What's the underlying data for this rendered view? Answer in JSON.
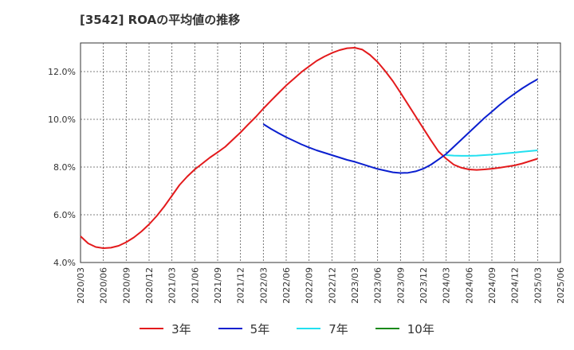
{
  "title": "[3542]  ROAの平均値の推移",
  "chart_data": {
    "type": "line",
    "title": "[3542]  ROAの平均値の推移",
    "xlabel": "",
    "ylabel": "",
    "x_ticks": [
      "2020/03",
      "2020/06",
      "2020/09",
      "2020/12",
      "2021/03",
      "2021/06",
      "2021/09",
      "2021/12",
      "2022/03",
      "2022/06",
      "2022/09",
      "2022/12",
      "2023/03",
      "2023/06",
      "2023/09",
      "2023/12",
      "2024/03",
      "2024/06",
      "2024/09",
      "2024/12",
      "2025/03",
      "2025/06"
    ],
    "y_ticks": [
      "4.0%",
      "6.0%",
      "8.0%",
      "10.0%",
      "12.0%"
    ],
    "ylim": [
      4.0,
      13.2
    ],
    "grid": true,
    "legend_position": "bottom",
    "series": [
      {
        "name": "3年",
        "color": "#e31a1c",
        "x": [
          "2020/03",
          "2020/04",
          "2020/05",
          "2020/06",
          "2020/07",
          "2020/08",
          "2020/09",
          "2020/10",
          "2020/11",
          "2020/12",
          "2021/01",
          "2021/02",
          "2021/03",
          "2021/04",
          "2021/05",
          "2021/06",
          "2021/07",
          "2021/08",
          "2021/09",
          "2021/10",
          "2021/11",
          "2021/12",
          "2022/01",
          "2022/02",
          "2022/03",
          "2022/04",
          "2022/05",
          "2022/06",
          "2022/07",
          "2022/08",
          "2022/09",
          "2022/10",
          "2022/11",
          "2022/12",
          "2023/01",
          "2023/02",
          "2023/03",
          "2023/04",
          "2023/05",
          "2023/06",
          "2023/07",
          "2023/08",
          "2023/09",
          "2023/10",
          "2023/11",
          "2023/12",
          "2024/01",
          "2024/02",
          "2024/03",
          "2024/04",
          "2024/05",
          "2024/06",
          "2024/07",
          "2024/08",
          "2024/09",
          "2024/10",
          "2024/11",
          "2024/12",
          "2025/01",
          "2025/02",
          "2025/03"
        ],
        "values": [
          5.1,
          4.8,
          4.65,
          4.6,
          4.62,
          4.7,
          4.85,
          5.05,
          5.3,
          5.6,
          5.95,
          6.35,
          6.8,
          7.25,
          7.6,
          7.9,
          8.15,
          8.4,
          8.62,
          8.85,
          9.15,
          9.45,
          9.78,
          10.1,
          10.45,
          10.78,
          11.1,
          11.42,
          11.7,
          11.98,
          12.22,
          12.45,
          12.63,
          12.78,
          12.9,
          12.98,
          13.0,
          12.92,
          12.7,
          12.4,
          12.02,
          11.6,
          11.12,
          10.62,
          10.12,
          9.62,
          9.12,
          8.65,
          8.35,
          8.1,
          7.97,
          7.9,
          7.88,
          7.9,
          7.93,
          7.97,
          8.02,
          8.07,
          8.15,
          8.25,
          8.35
        ]
      },
      {
        "name": "5年",
        "color": "#0a1fcf",
        "x": [
          "2022/03",
          "2022/04",
          "2022/05",
          "2022/06",
          "2022/07",
          "2022/08",
          "2022/09",
          "2022/10",
          "2022/11",
          "2022/12",
          "2023/01",
          "2023/02",
          "2023/03",
          "2023/04",
          "2023/05",
          "2023/06",
          "2023/07",
          "2023/08",
          "2023/09",
          "2023/10",
          "2023/11",
          "2023/12",
          "2024/01",
          "2024/02",
          "2024/03",
          "2024/04",
          "2024/05",
          "2024/06",
          "2024/07",
          "2024/08",
          "2024/09",
          "2024/10",
          "2024/11",
          "2024/12",
          "2025/01",
          "2025/02",
          "2025/03"
        ],
        "values": [
          9.8,
          9.6,
          9.42,
          9.25,
          9.1,
          8.95,
          8.82,
          8.7,
          8.6,
          8.5,
          8.4,
          8.3,
          8.22,
          8.12,
          8.02,
          7.92,
          7.85,
          7.78,
          7.75,
          7.76,
          7.82,
          7.93,
          8.1,
          8.32,
          8.55,
          8.85,
          9.15,
          9.45,
          9.75,
          10.05,
          10.32,
          10.6,
          10.85,
          11.08,
          11.3,
          11.5,
          11.68
        ]
      },
      {
        "name": "7年",
        "color": "#22e0f0",
        "x": [
          "2024/03",
          "2024/04",
          "2024/05",
          "2024/06",
          "2024/07",
          "2024/08",
          "2024/09",
          "2024/10",
          "2024/11",
          "2024/12",
          "2025/01",
          "2025/02",
          "2025/03"
        ],
        "values": [
          8.5,
          8.48,
          8.47,
          8.47,
          8.48,
          8.5,
          8.52,
          8.55,
          8.58,
          8.61,
          8.64,
          8.67,
          8.7
        ]
      },
      {
        "name": "10年",
        "color": "#1a8a1a",
        "x": [],
        "values": []
      }
    ]
  }
}
